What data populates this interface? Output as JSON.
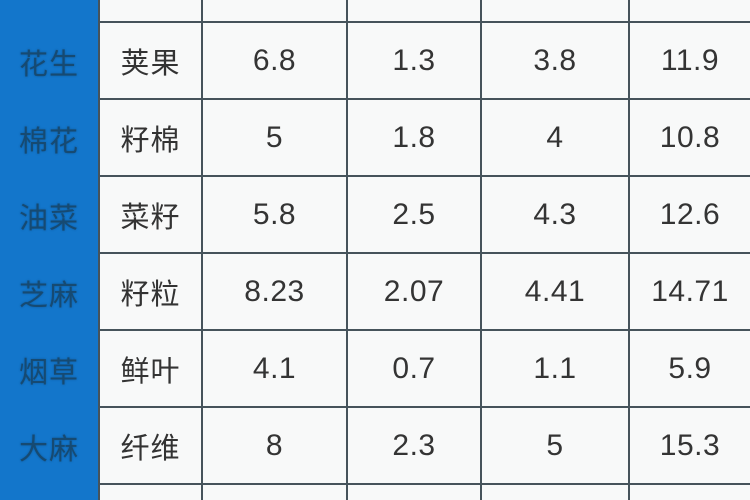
{
  "table": {
    "header_visible": false,
    "note_top_row": "",
    "note_bottom_row": "",
    "colors": {
      "accent_blue": "#1376cb",
      "blue_text": "#164a72",
      "grid_border": "#46535b",
      "cell_background": "#f8f9f9",
      "value_text": "#343434"
    },
    "rows": [
      {
        "crop": "花生",
        "product": "荚果",
        "values": [
          "6.8",
          "1.3",
          "3.8",
          "11.9"
        ]
      },
      {
        "crop": "棉花",
        "product": "籽棉",
        "values": [
          "5",
          "1.8",
          "4",
          "10.8"
        ]
      },
      {
        "crop": "油菜",
        "product": "菜籽",
        "values": [
          "5.8",
          "2.5",
          "4.3",
          "12.6"
        ]
      },
      {
        "crop": "芝麻",
        "product": "籽粒",
        "values": [
          "8.23",
          "2.07",
          "4.41",
          "14.71"
        ]
      },
      {
        "crop": "烟草",
        "product": "鲜叶",
        "values": [
          "4.1",
          "0.7",
          "1.1",
          "5.9"
        ]
      },
      {
        "crop": "大麻",
        "product": "纤维",
        "values": [
          "8",
          "2.3",
          "5",
          "15.3"
        ]
      }
    ]
  },
  "chart_data": {
    "type": "table",
    "header_visible": false,
    "columns": [
      "crop",
      "product",
      "value1",
      "value2",
      "value3",
      "value4"
    ],
    "rows": [
      [
        "花生",
        "荚果",
        6.8,
        1.3,
        3.8,
        11.9
      ],
      [
        "棉花",
        "籽棉",
        5,
        1.8,
        4,
        10.8
      ],
      [
        "油菜",
        "菜籽",
        5.8,
        2.5,
        4.3,
        12.6
      ],
      [
        "芝麻",
        "籽粒",
        8.23,
        2.07,
        4.41,
        14.71
      ],
      [
        "烟草",
        "鲜叶",
        4.1,
        0.7,
        1.1,
        5.9
      ],
      [
        "大麻",
        "纤维",
        8,
        2.3,
        5,
        15.3
      ]
    ]
  }
}
